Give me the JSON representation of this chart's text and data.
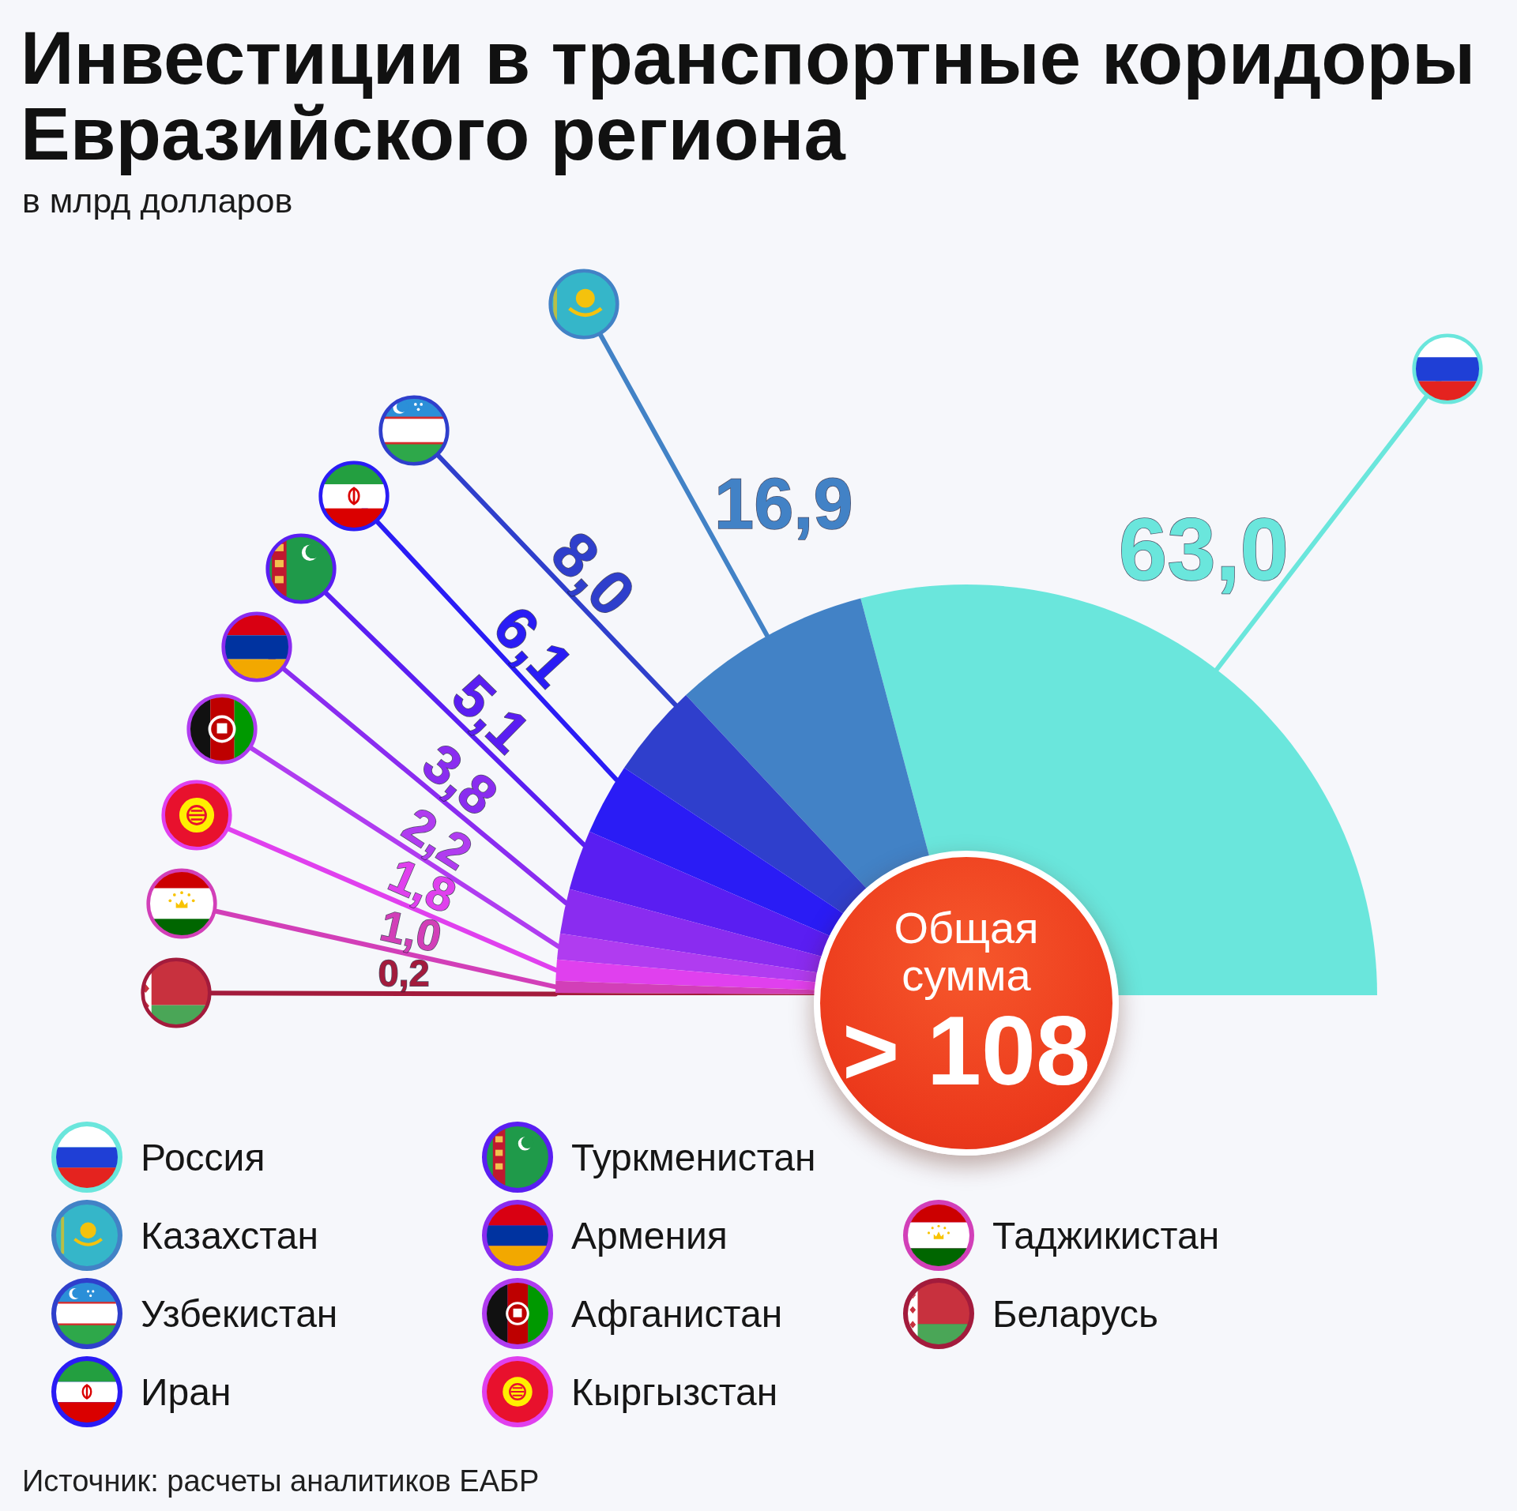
{
  "chart_data": {
    "type": "pie",
    "title": "Инвестиции в транспортные коридоры Евразийского региона",
    "subtitle": "в млрд долларов",
    "categories": [
      "Россия",
      "Казахстан",
      "Узбекистан",
      "Иран",
      "Туркменистан",
      "Армения",
      "Афганистан",
      "Кыргызстан",
      "Таджикистан",
      "Беларусь"
    ],
    "values": [
      63.0,
      16.9,
      8.0,
      6.1,
      5.1,
      3.8,
      2.2,
      1.8,
      1.0,
      0.2
    ],
    "colors": [
      "#6ae6dc",
      "#4282c6",
      "#2f3fcc",
      "#2a1cf5",
      "#5a1ef2",
      "#8a2cf0",
      "#b03cf0",
      "#e040ee",
      "#d23fb8",
      "#a31b3c"
    ],
    "value_labels": [
      "63,0",
      "16,9",
      "8,0",
      "6,1",
      "5,1",
      "3,8",
      "2,2",
      "1,8",
      "1,0",
      "0,2"
    ],
    "legend": "bottom",
    "annotations": [
      "Общая сумма",
      "> 108",
      "Источник: расчеты аналитиков ЕАБР"
    ]
  }
}
